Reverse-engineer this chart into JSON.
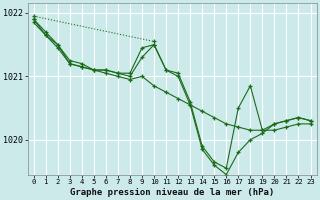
{
  "background_color": "#cceaea",
  "plot_bg_color": "#cceaea",
  "grid_color": "#ffffff",
  "line_color": "#1a6b1a",
  "xlabel": "Graphe pression niveau de la mer (hPa)",
  "ylim": [
    1019.45,
    1022.15
  ],
  "xlim": [
    -0.5,
    23.5
  ],
  "yticks": [
    1020,
    1021,
    1022
  ],
  "xtick_labels": [
    "0",
    "1",
    "2",
    "3",
    "4",
    "5",
    "6",
    "7",
    "8",
    "9",
    "10",
    "11",
    "12",
    "13",
    "14",
    "15",
    "16",
    "17",
    "18",
    "19",
    "20",
    "21",
    "22",
    "23"
  ],
  "series": [
    {
      "x": [
        0,
        1,
        2,
        3,
        4,
        5,
        6,
        7,
        8,
        9,
        10,
        11,
        12,
        13,
        14,
        15,
        16,
        17,
        18,
        19,
        20,
        21,
        22,
        23
      ],
      "y": [
        1021.85,
        1021.65,
        1021.45,
        1021.2,
        1021.15,
        1021.1,
        1021.05,
        1021.0,
        1020.95,
        1021.0,
        1020.85,
        1020.75,
        1020.65,
        1020.55,
        1020.45,
        1020.35,
        1020.25,
        1020.2,
        1020.15,
        1020.15,
        1020.15,
        1020.2,
        1020.25,
        1020.25
      ],
      "linestyle": "-",
      "marker": true
    },
    {
      "x": [
        0,
        1,
        2,
        3,
        4,
        5,
        6,
        7,
        8,
        9,
        10,
        11,
        12,
        13,
        14,
        15,
        16,
        17,
        18,
        19,
        20,
        21,
        22,
        23
      ],
      "y": [
        1021.9,
        1021.65,
        1021.5,
        1021.2,
        1021.15,
        1021.1,
        1021.1,
        1021.05,
        1021.0,
        1021.3,
        1021.5,
        1021.1,
        1021.0,
        1020.55,
        1019.85,
        1019.6,
        1019.45,
        1019.8,
        1020.0,
        1020.1,
        1020.25,
        1020.3,
        1020.35,
        1020.3
      ],
      "linestyle": "-",
      "marker": true
    },
    {
      "x": [
        0,
        1,
        2,
        3,
        4,
        5,
        6,
        7,
        8,
        9,
        10,
        11,
        12,
        13,
        14,
        15,
        16,
        17,
        18,
        19,
        20,
        21,
        22,
        23
      ],
      "y": [
        1021.9,
        1021.7,
        1021.5,
        1021.25,
        1021.2,
        1021.1,
        1021.1,
        1021.05,
        1021.05,
        1021.45,
        1021.5,
        1021.1,
        1021.05,
        1020.6,
        1019.9,
        1019.65,
        1019.55,
        1020.5,
        1020.85,
        1020.15,
        1020.25,
        1020.3,
        1020.35,
        1020.3
      ],
      "linestyle": "-",
      "marker": true
    },
    {
      "x": [
        0,
        10
      ],
      "y": [
        1021.95,
        1021.55
      ],
      "linestyle": "dotted",
      "marker": true
    }
  ]
}
